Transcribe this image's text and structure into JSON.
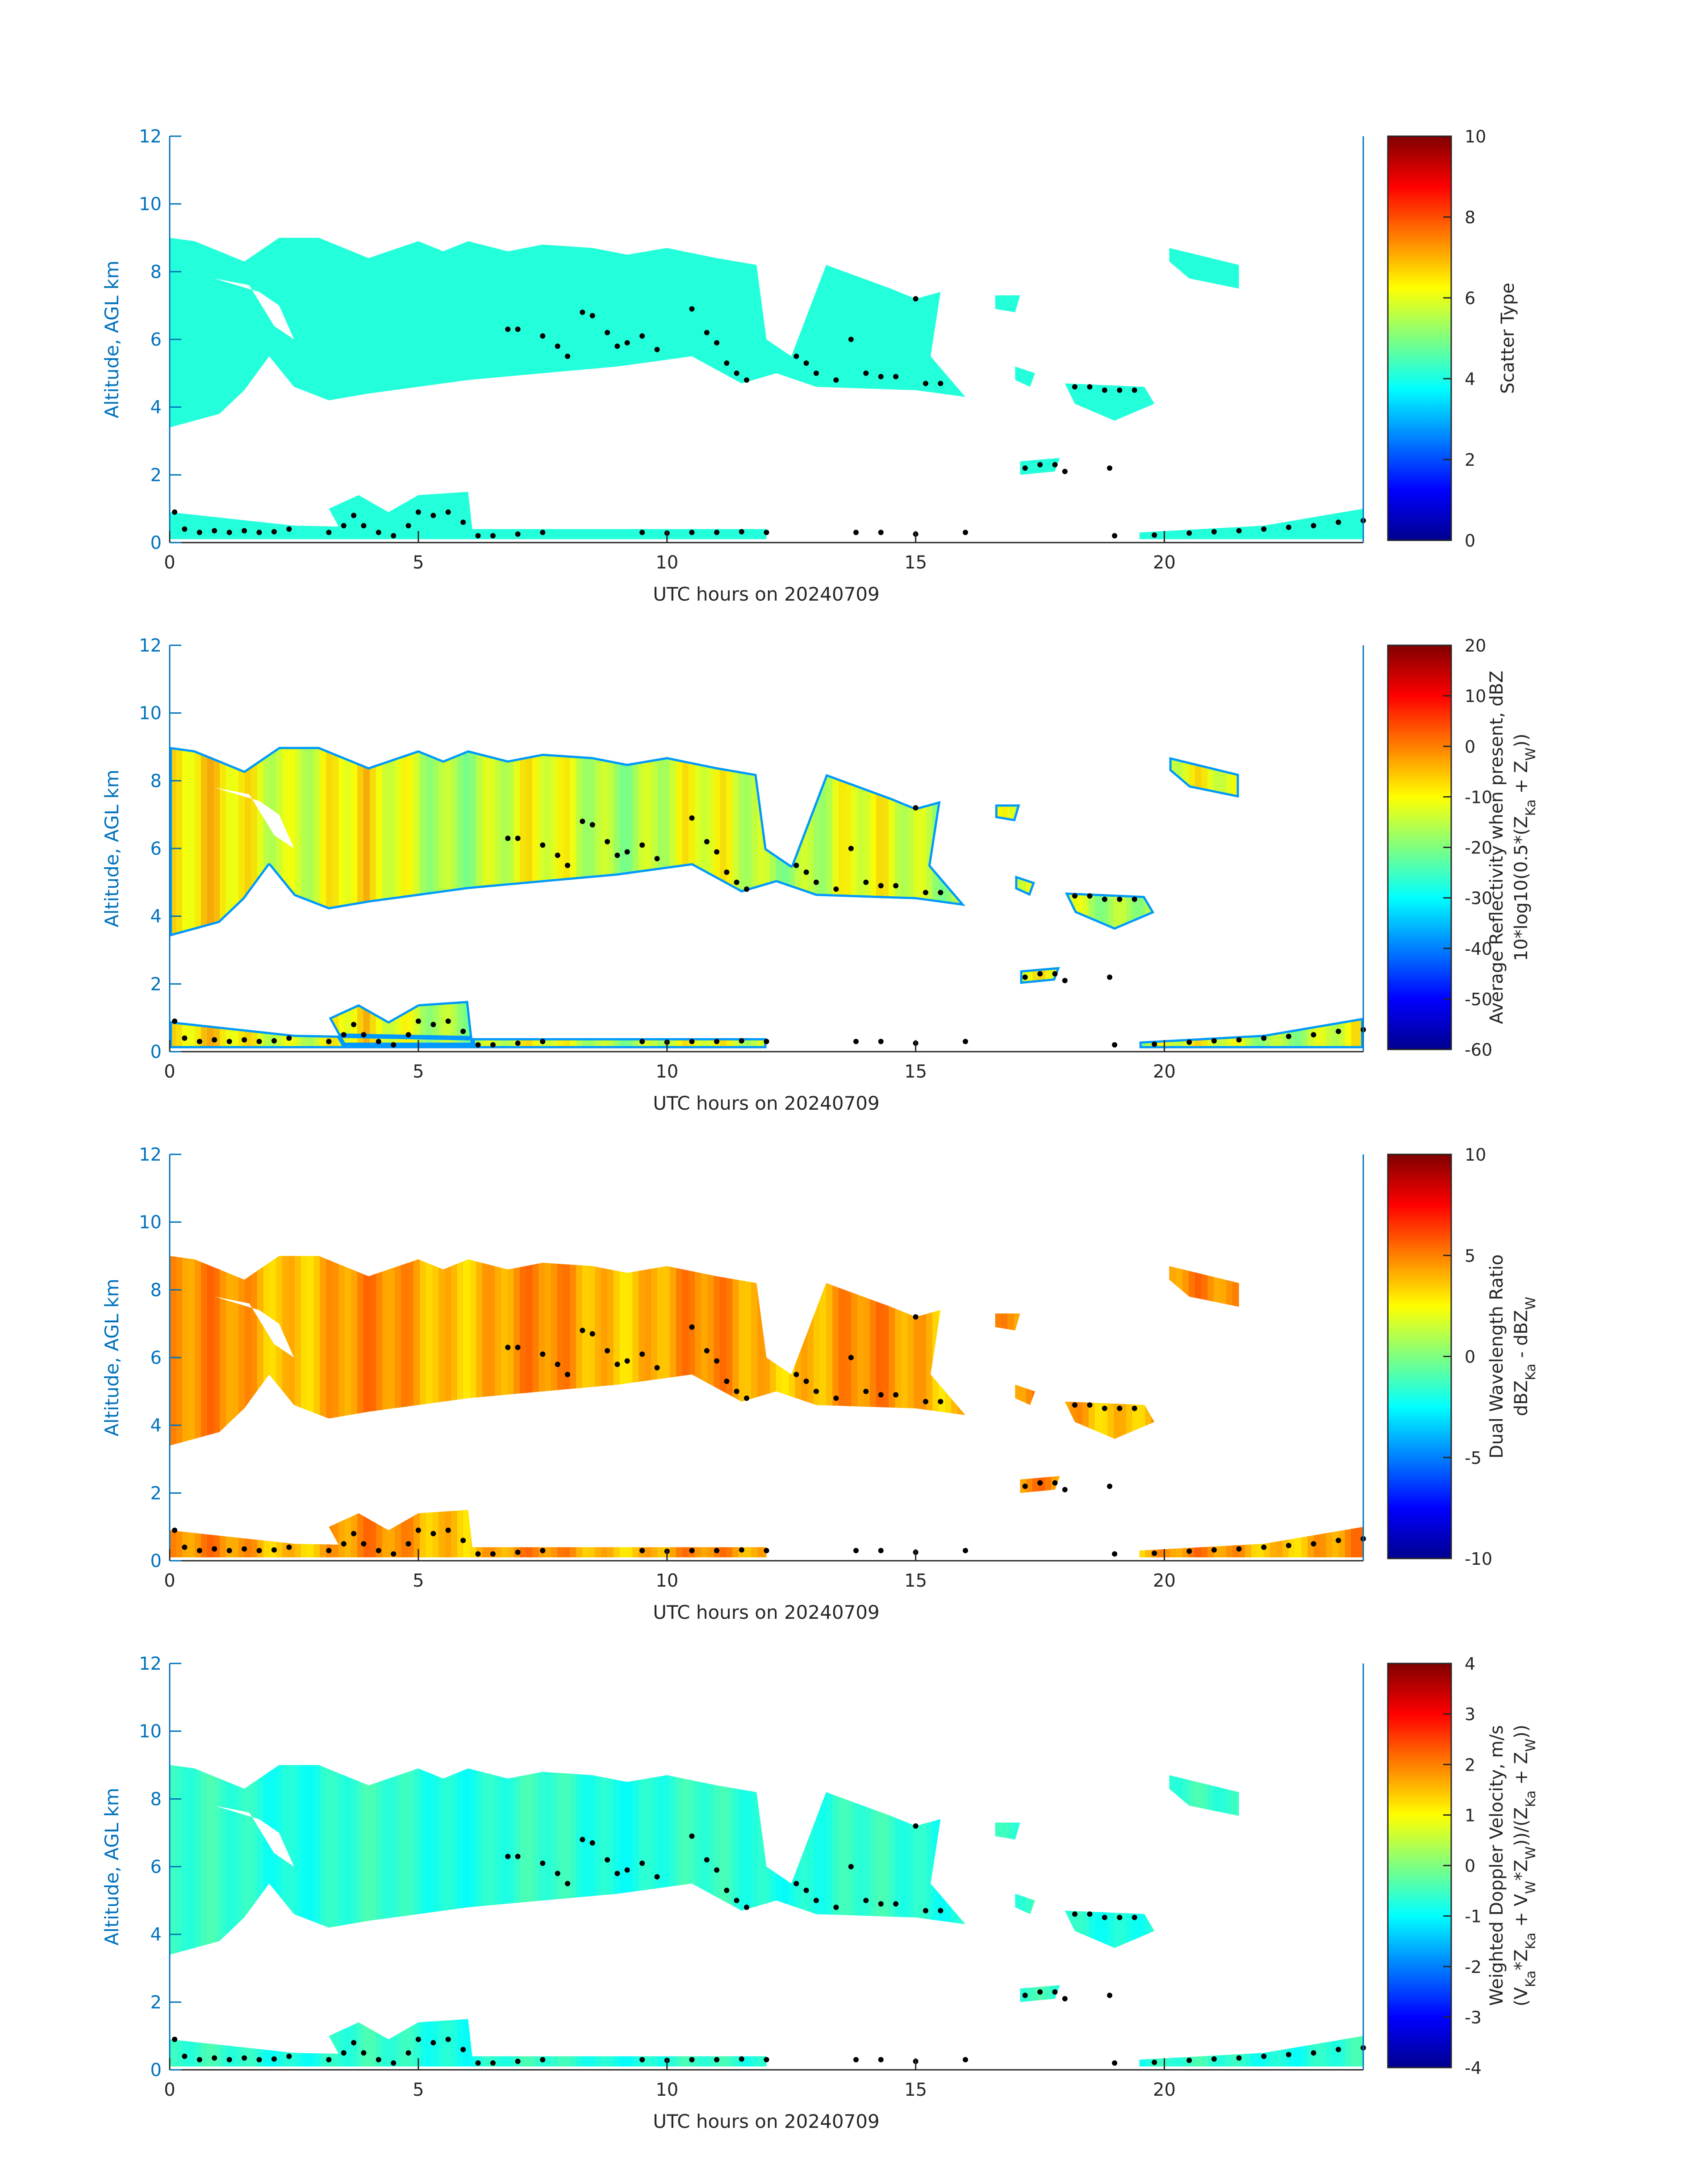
{
  "figure": {
    "colors": {
      "axis_blue": "#0072BD",
      "text_dark": "#262626",
      "marker": "#000000",
      "background": "#FFFFFF"
    },
    "colormap": "jet"
  },
  "chart_data": [
    {
      "type": "heatmap",
      "panel": "scatter-type",
      "xlabel": "UTC hours on 20240709",
      "ylabel": "Altitude, AGL km",
      "xlim": [
        0,
        24
      ],
      "ylim": [
        0,
        12
      ],
      "xticks": [
        0,
        5,
        10,
        15,
        20
      ],
      "yticks": [
        0,
        2,
        4,
        6,
        8,
        10,
        12
      ],
      "colorbar": {
        "label_lines": [
          "Scatter Type"
        ],
        "clim": [
          0,
          10
        ],
        "ticks": [
          0,
          2,
          4,
          6,
          8,
          10
        ]
      },
      "field_mode": "uniform",
      "field_value": 4.1
    },
    {
      "type": "heatmap",
      "panel": "reflectivity",
      "xlabel": "UTC hours on 20240709",
      "ylabel": "Altitude, AGL km",
      "xlim": [
        0,
        24
      ],
      "ylim": [
        0,
        12
      ],
      "xticks": [
        0,
        5,
        10,
        15,
        20
      ],
      "yticks": [
        0,
        2,
        4,
        6,
        8,
        10,
        12
      ],
      "colorbar": {
        "label_lines": [
          "Average Reflectivity when present, dBZ",
          "10*log10(0.5*(Z_{Ka} + Z_{W}))"
        ],
        "clim": [
          -60,
          20
        ],
        "ticks": [
          -60,
          -50,
          -40,
          -30,
          -20,
          -10,
          0,
          10,
          20
        ]
      },
      "field_mode": "reflectivity",
      "field_value": -15
    },
    {
      "type": "heatmap",
      "panel": "dual-wavelength-ratio",
      "xlabel": "UTC hours on 20240709",
      "ylabel": "Altitude, AGL km",
      "xlim": [
        0,
        24
      ],
      "ylim": [
        0,
        12
      ],
      "xticks": [
        0,
        5,
        10,
        15,
        20
      ],
      "yticks": [
        0,
        2,
        4,
        6,
        8,
        10,
        12
      ],
      "colorbar": {
        "label_lines": [
          "Dual Wavelength Ratio",
          "dBZ_{Ka} - dBZ_{W}"
        ],
        "clim": [
          -10,
          10
        ],
        "ticks": [
          -10,
          -5,
          0,
          5,
          10
        ]
      },
      "field_mode": "dwr",
      "field_value": 4.5
    },
    {
      "type": "heatmap",
      "panel": "doppler-velocity",
      "xlabel": "UTC hours on 20240709",
      "ylabel": "Altitude, AGL km",
      "xlim": [
        0,
        24
      ],
      "ylim": [
        0,
        12
      ],
      "xticks": [
        0,
        5,
        10,
        15,
        20
      ],
      "yticks": [
        0,
        2,
        4,
        6,
        8,
        10,
        12
      ],
      "colorbar": {
        "label_lines": [
          "Weighted Doppler Velocity, m/s",
          "(V_{Ka}*Z_{Ka} + V_{W}*Z_{W}))/(Z_{Ka} + Z_{W}))"
        ],
        "clim": [
          -4,
          4
        ],
        "ticks": [
          -4,
          -3,
          -2,
          -1,
          0,
          1,
          2,
          3,
          4
        ]
      },
      "field_mode": "velocity",
      "field_value": -0.6
    }
  ],
  "echo_regions": [
    {
      "name": "main-mid-level-cloud",
      "polygon": [
        [
          0,
          9.0
        ],
        [
          0.5,
          8.9
        ],
        [
          1,
          8.6
        ],
        [
          1.5,
          8.3
        ],
        [
          2.2,
          9.0
        ],
        [
          3,
          9.0
        ],
        [
          3.5,
          8.7
        ],
        [
          4,
          8.4
        ],
        [
          5,
          8.9
        ],
        [
          5.5,
          8.6
        ],
        [
          6,
          8.9
        ],
        [
          6.8,
          8.6
        ],
        [
          7.5,
          8.8
        ],
        [
          8.5,
          8.7
        ],
        [
          9.2,
          8.5
        ],
        [
          10,
          8.7
        ],
        [
          11,
          8.4
        ],
        [
          11.8,
          8.2
        ],
        [
          12,
          6.0
        ],
        [
          12.5,
          5.5
        ],
        [
          13.2,
          8.2
        ],
        [
          14.5,
          7.5
        ],
        [
          15,
          7.2
        ],
        [
          15.5,
          7.4
        ],
        [
          15.3,
          5.5
        ],
        [
          16,
          4.3
        ],
        [
          15,
          4.5
        ],
        [
          13,
          4.6
        ],
        [
          12.2,
          5.0
        ],
        [
          11.5,
          4.7
        ],
        [
          10.5,
          5.5
        ],
        [
          9,
          5.2
        ],
        [
          7.5,
          5.0
        ],
        [
          6,
          4.8
        ],
        [
          5,
          4.6
        ],
        [
          4,
          4.4
        ],
        [
          3.2,
          4.2
        ],
        [
          2.5,
          4.6
        ],
        [
          2,
          5.5
        ],
        [
          1.5,
          4.5
        ],
        [
          1.0,
          3.8
        ],
        [
          0.5,
          3.6
        ],
        [
          0,
          3.4
        ]
      ]
    },
    {
      "name": "clear-gap-upper-left",
      "clear": true,
      "polygon": [
        [
          0.9,
          7.8
        ],
        [
          1.6,
          7.6
        ],
        [
          2.1,
          6.4
        ],
        [
          2.5,
          6.0
        ],
        [
          2.2,
          7.0
        ],
        [
          1.8,
          7.4
        ]
      ]
    },
    {
      "name": "cloud-near-17h",
      "polygon": [
        [
          16.6,
          7.3
        ],
        [
          17.1,
          7.3
        ],
        [
          17.0,
          6.8
        ],
        [
          16.6,
          6.9
        ]
      ]
    },
    {
      "name": "cloud-near-17h-mid",
      "polygon": [
        [
          17.0,
          5.2
        ],
        [
          17.4,
          5.0
        ],
        [
          17.3,
          4.6
        ],
        [
          17.0,
          4.8
        ]
      ]
    },
    {
      "name": "cloud-near-18-19h",
      "polygon": [
        [
          18.0,
          4.7
        ],
        [
          19.6,
          4.6
        ],
        [
          19.8,
          4.1
        ],
        [
          19.0,
          3.6
        ],
        [
          18.2,
          4.1
        ]
      ]
    },
    {
      "name": "cloud-near-21h",
      "polygon": [
        [
          20.1,
          8.7
        ],
        [
          21.5,
          8.2
        ],
        [
          21.5,
          7.5
        ],
        [
          20.5,
          7.8
        ],
        [
          20.1,
          8.3
        ]
      ]
    },
    {
      "name": "cloud-near-17-18h-low",
      "polygon": [
        [
          17.1,
          2.4
        ],
        [
          17.9,
          2.5
        ],
        [
          17.8,
          2.1
        ],
        [
          17.1,
          2.0
        ]
      ]
    },
    {
      "name": "boundary-layer-3-6h",
      "polygon": [
        [
          3.2,
          1.0
        ],
        [
          3.8,
          1.4
        ],
        [
          4.4,
          0.9
        ],
        [
          5.0,
          1.4
        ],
        [
          6.0,
          1.5
        ],
        [
          6.1,
          0.2
        ],
        [
          4.5,
          0.2
        ],
        [
          3.5,
          0.2
        ]
      ]
    },
    {
      "name": "boundary-layer-strip",
      "polygon": [
        [
          0,
          0.9
        ],
        [
          2.5,
          0.5
        ],
        [
          6,
          0.4
        ],
        [
          10,
          0.4
        ],
        [
          12,
          0.4
        ],
        [
          12,
          0.1
        ],
        [
          0,
          0.1
        ]
      ]
    },
    {
      "name": "boundary-layer-evening",
      "polygon": [
        [
          19.5,
          0.3
        ],
        [
          22,
          0.5
        ],
        [
          24,
          1.0
        ],
        [
          24,
          0.1
        ],
        [
          19.5,
          0.1
        ]
      ]
    }
  ],
  "marker_points": [
    [
      0.1,
      0.9
    ],
    [
      0.3,
      0.4
    ],
    [
      0.6,
      0.3
    ],
    [
      0.9,
      0.35
    ],
    [
      1.2,
      0.3
    ],
    [
      1.5,
      0.35
    ],
    [
      1.8,
      0.3
    ],
    [
      2.1,
      0.32
    ],
    [
      2.4,
      0.4
    ],
    [
      3.2,
      0.3
    ],
    [
      3.5,
      0.5
    ],
    [
      3.7,
      0.8
    ],
    [
      3.9,
      0.5
    ],
    [
      4.2,
      0.3
    ],
    [
      4.5,
      0.2
    ],
    [
      4.8,
      0.5
    ],
    [
      5.0,
      0.9
    ],
    [
      5.3,
      0.8
    ],
    [
      5.6,
      0.9
    ],
    [
      5.9,
      0.6
    ],
    [
      6.2,
      0.2
    ],
    [
      6.5,
      0.2
    ],
    [
      7.0,
      0.25
    ],
    [
      7.5,
      0.3
    ],
    [
      9.5,
      0.3
    ],
    [
      10.0,
      0.28
    ],
    [
      10.5,
      0.3
    ],
    [
      11.0,
      0.3
    ],
    [
      11.5,
      0.32
    ],
    [
      12.0,
      0.3
    ],
    [
      13.8,
      0.3
    ],
    [
      14.3,
      0.3
    ],
    [
      15.0,
      0.25
    ],
    [
      16.0,
      0.3
    ],
    [
      19.0,
      0.2
    ],
    [
      19.8,
      0.22
    ],
    [
      20.5,
      0.28
    ],
    [
      21.0,
      0.32
    ],
    [
      21.5,
      0.35
    ],
    [
      22.0,
      0.4
    ],
    [
      22.5,
      0.45
    ],
    [
      23.0,
      0.5
    ],
    [
      23.5,
      0.6
    ],
    [
      24.0,
      0.65
    ],
    [
      6.8,
      6.3
    ],
    [
      7.0,
      6.3
    ],
    [
      7.5,
      6.1
    ],
    [
      7.8,
      5.8
    ],
    [
      8.0,
      5.5
    ],
    [
      8.3,
      6.8
    ],
    [
      8.5,
      6.7
    ],
    [
      8.8,
      6.2
    ],
    [
      9.0,
      5.8
    ],
    [
      9.2,
      5.9
    ],
    [
      9.5,
      6.1
    ],
    [
      9.8,
      5.7
    ],
    [
      10.5,
      6.9
    ],
    [
      10.8,
      6.2
    ],
    [
      11.0,
      5.9
    ],
    [
      11.2,
      5.3
    ],
    [
      11.4,
      5.0
    ],
    [
      11.6,
      4.8
    ],
    [
      12.6,
      5.5
    ],
    [
      12.8,
      5.3
    ],
    [
      13.0,
      5.0
    ],
    [
      13.4,
      4.8
    ],
    [
      13.7,
      6.0
    ],
    [
      14.0,
      5.0
    ],
    [
      14.3,
      4.9
    ],
    [
      14.6,
      4.9
    ],
    [
      15.0,
      7.2
    ],
    [
      15.2,
      4.7
    ],
    [
      15.5,
      4.7
    ],
    [
      17.2,
      2.2
    ],
    [
      17.5,
      2.3
    ],
    [
      17.8,
      2.3
    ],
    [
      18.0,
      2.1
    ],
    [
      18.2,
      4.6
    ],
    [
      18.5,
      4.6
    ],
    [
      18.8,
      4.5
    ],
    [
      19.1,
      4.5
    ],
    [
      19.4,
      4.5
    ],
    [
      18.9,
      2.2
    ]
  ]
}
